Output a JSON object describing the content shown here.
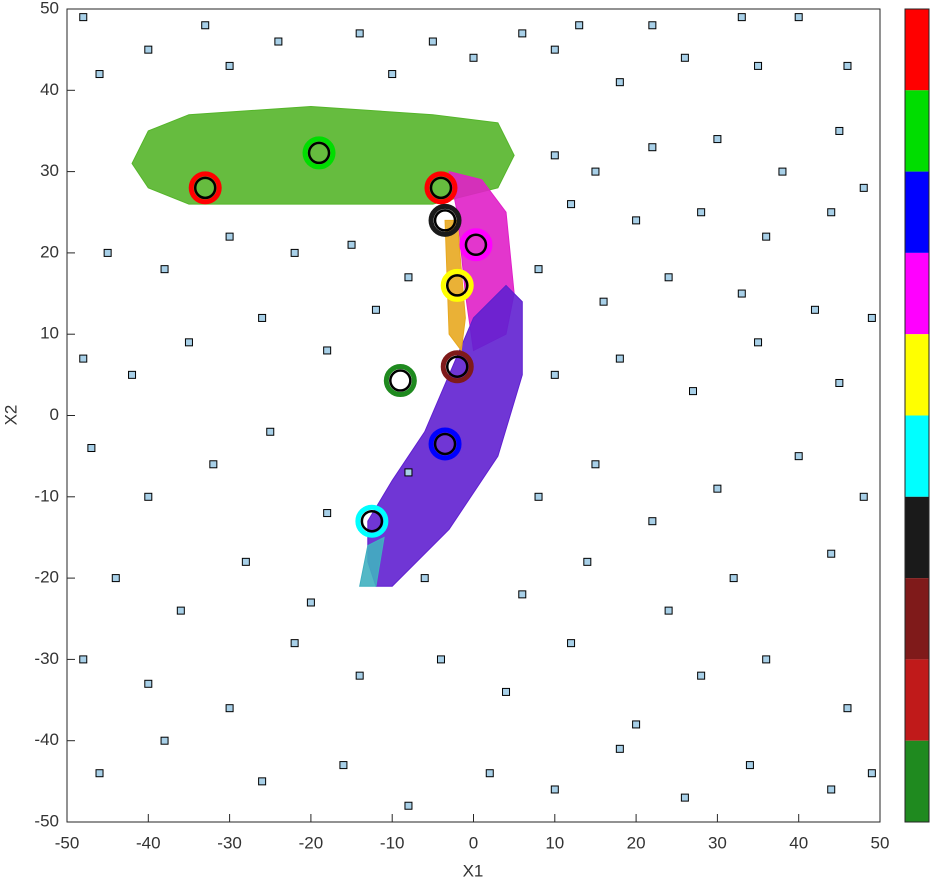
{
  "chart_data": {
    "type": "scatter",
    "xlabel": "X1",
    "ylabel": "X2",
    "xlim": [
      -50,
      50
    ],
    "ylim": [
      -50,
      50
    ],
    "xticks": [
      -50,
      -40,
      -30,
      -20,
      -10,
      0,
      10,
      20,
      30,
      40,
      50
    ],
    "yticks": [
      -50,
      -40,
      -30,
      -20,
      -10,
      0,
      10,
      20,
      30,
      40,
      50
    ],
    "colorbar": [
      "#ff0000",
      "#00dd00",
      "#0000ff",
      "#ff00ff",
      "#ffff00",
      "#00ffff",
      "#1a1a1a",
      "#7f1a1a",
      "#c01a1a",
      "#1f8a1f"
    ],
    "series": [
      {
        "marker": "region",
        "color": "#55b52a",
        "x": [
          -42,
          -40,
          -35,
          -20,
          -5,
          3,
          5,
          3,
          -5,
          -20,
          -35,
          -40
        ],
        "y": [
          31,
          35,
          37,
          38,
          37,
          36,
          32,
          28,
          26,
          26,
          26,
          28
        ]
      },
      {
        "marker": "region",
        "color": "#e020c8",
        "x": [
          -3,
          1,
          4,
          5,
          4,
          0,
          -1,
          -2
        ],
        "y": [
          30,
          29,
          25,
          15,
          10,
          8,
          15,
          25
        ]
      },
      {
        "marker": "region",
        "color": "#6020d0",
        "x": [
          -12,
          -10,
          -3,
          3,
          6,
          6,
          4,
          0,
          -3,
          -6,
          -10,
          -13,
          -13
        ],
        "y": [
          -21,
          -21,
          -14,
          -5,
          5,
          14,
          16,
          12,
          5,
          -2,
          -8,
          -13,
          -18
        ]
      },
      {
        "marker": "region",
        "color": "#e8a820",
        "x": [
          -3.5,
          -2,
          -1,
          -1.5,
          -3
        ],
        "y": [
          24,
          24,
          12,
          8,
          10
        ]
      },
      {
        "marker": "region",
        "color": "#40b0c0",
        "x": [
          -14,
          -12,
          -11,
          -13
        ],
        "y": [
          -21,
          -21,
          -15,
          -16
        ]
      },
      {
        "marker": "square",
        "color": "#a8d0e8",
        "x": [
          -48,
          -33,
          -24,
          -14,
          -5,
          6,
          13,
          22,
          33,
          40,
          -46,
          -40,
          -30,
          -10,
          0,
          10,
          18,
          26,
          35,
          46,
          10,
          15,
          22,
          30,
          38,
          45,
          48,
          12,
          20,
          28,
          36,
          44,
          -45,
          -38,
          -30,
          -22,
          -15,
          -8,
          8,
          16,
          24,
          33,
          42,
          49,
          -48,
          -42,
          -35,
          -26,
          -18,
          -12,
          10,
          18,
          27,
          35,
          45,
          -47,
          -40,
          -32,
          -25,
          -18,
          -8,
          8,
          15,
          22,
          30,
          40,
          48,
          -44,
          -36,
          -28,
          -20,
          -6,
          6,
          14,
          24,
          32,
          44,
          -48,
          -40,
          -30,
          -22,
          -14,
          -4,
          4,
          12,
          20,
          28,
          36,
          46,
          -46,
          -38,
          -26,
          -16,
          -8,
          2,
          10,
          18,
          26,
          34,
          44,
          49
        ],
        "y": [
          49,
          48,
          46,
          47,
          46,
          47,
          48,
          48,
          49,
          49,
          42,
          45,
          43,
          42,
          44,
          45,
          41,
          44,
          43,
          43,
          32,
          30,
          33,
          34,
          30,
          35,
          28,
          26,
          24,
          25,
          22,
          25,
          20,
          18,
          22,
          20,
          21,
          17,
          18,
          14,
          17,
          15,
          13,
          12,
          7,
          5,
          9,
          12,
          8,
          13,
          5,
          7,
          3,
          9,
          4,
          -4,
          -10,
          -6,
          -2,
          -12,
          -7,
          -10,
          -6,
          -13,
          -9,
          -5,
          -10,
          -20,
          -24,
          -18,
          -23,
          -20,
          -22,
          -18,
          -24,
          -20,
          -17,
          -30,
          -33,
          -36,
          -28,
          -32,
          -30,
          -34,
          -28,
          -38,
          -32,
          -30,
          -36,
          -44,
          -40,
          -45,
          -43,
          -48,
          -44,
          -46,
          -41,
          -47,
          -43,
          -46,
          -44
        ]
      },
      {
        "marker": "circle",
        "color": "#00dd00",
        "x": [
          -19
        ],
        "y": [
          32.3
        ]
      },
      {
        "marker": "circle",
        "color": "#ff0000",
        "x": [
          -33,
          -4
        ],
        "y": [
          28,
          28
        ]
      },
      {
        "marker": "circle",
        "color": "#1a1a1a",
        "x": [
          -3.5
        ],
        "y": [
          24
        ]
      },
      {
        "marker": "circle",
        "color": "#ff00ff",
        "x": [
          0.3
        ],
        "y": [
          21
        ]
      },
      {
        "marker": "circle",
        "color": "#ffff00",
        "x": [
          -2
        ],
        "y": [
          16
        ]
      },
      {
        "marker": "circle",
        "color": "#7f1a1a",
        "x": [
          -2
        ],
        "y": [
          6
        ]
      },
      {
        "marker": "circle",
        "color": "#1f8a1f",
        "x": [
          -9
        ],
        "y": [
          4.3
        ]
      },
      {
        "marker": "circle",
        "color": "#0000ff",
        "x": [
          -3.5
        ],
        "y": [
          -3.5
        ]
      },
      {
        "marker": "circle",
        "color": "#00ffff",
        "x": [
          -12.5
        ],
        "y": [
          -13
        ]
      }
    ]
  }
}
